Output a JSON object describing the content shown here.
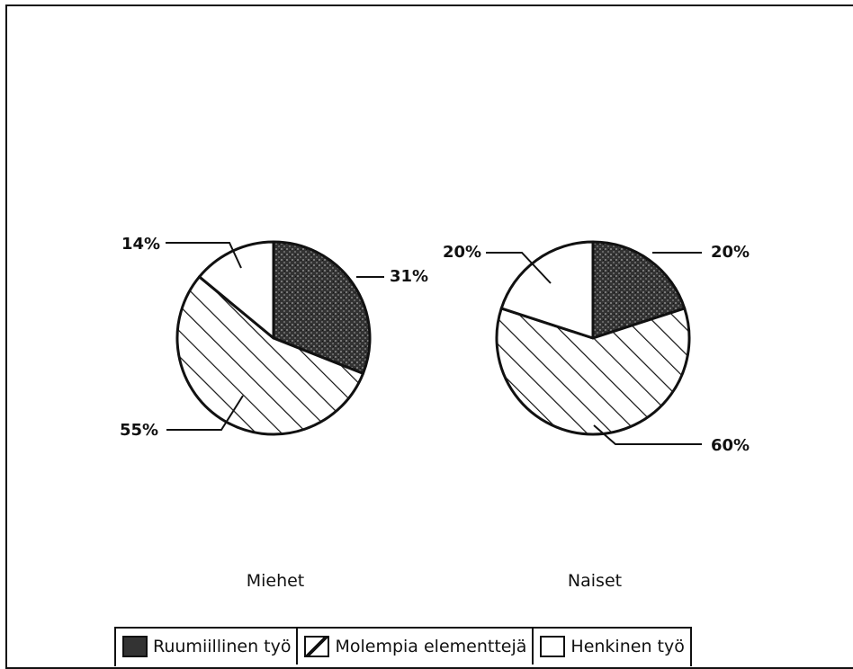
{
  "chart_data": [
    {
      "type": "pie",
      "title": "Miehet",
      "slices": [
        {
          "label": "Ruumiillinen työ",
          "value": 31,
          "value_label": "31%"
        },
        {
          "label": "Molempia elementtejä",
          "value": 55,
          "value_label": "55%"
        },
        {
          "label": "Henkinen työ",
          "value": 14,
          "value_label": "14%"
        }
      ]
    },
    {
      "type": "pie",
      "title": "Naiset",
      "slices": [
        {
          "label": "Ruumiillinen työ",
          "value": 20,
          "value_label": "20%"
        },
        {
          "label": "Molempia elementtejä",
          "value": 60,
          "value_label": "60%"
        },
        {
          "label": "Henkinen työ",
          "value": 20,
          "value_label": "20%"
        }
      ]
    }
  ],
  "legend": [
    {
      "label": "Ruumiillinen työ",
      "pattern": "dark-texture"
    },
    {
      "label": "Molempia elementtejä",
      "pattern": "diagonal-hatch"
    },
    {
      "label": "Henkinen työ",
      "pattern": "white"
    }
  ],
  "colors": {
    "ink": "#111111",
    "dark_fill": "#3a3a3a",
    "background": "#ffffff"
  }
}
